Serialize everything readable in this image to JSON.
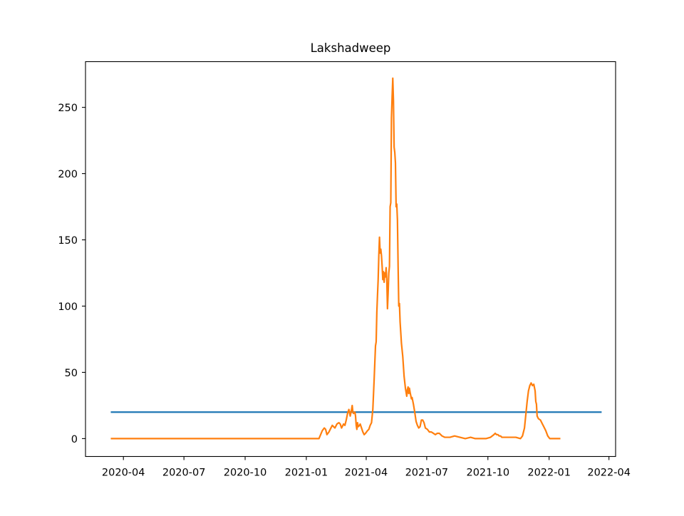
{
  "chart_data": {
    "type": "line",
    "title": "Lakshadweep",
    "xlabel": "",
    "ylabel": "",
    "x_axis_kind": "date",
    "xlim": [
      "2020-02-04",
      "2022-04-11"
    ],
    "ylim": [
      -13.5,
      284.5
    ],
    "x_ticks": [
      "2020-04",
      "2020-07",
      "2020-10",
      "2021-01",
      "2021-04",
      "2021-07",
      "2021-10",
      "2022-01",
      "2022-04"
    ],
    "y_ticks": [
      0,
      50,
      100,
      150,
      200,
      250
    ],
    "grid": false,
    "legend": null,
    "series": [
      {
        "color": "#1f77b4",
        "points": [
          [
            "2020-03-13",
            20
          ],
          [
            "2022-03-21",
            20
          ]
        ]
      },
      {
        "color": "#ff7f0e",
        "points": [
          [
            "2020-03-13",
            0
          ],
          [
            "2020-06-01",
            0
          ],
          [
            "2020-09-01",
            0
          ],
          [
            "2020-12-01",
            0
          ],
          [
            "2021-01-20",
            0
          ],
          [
            "2021-01-25",
            6
          ],
          [
            "2021-01-28",
            8
          ],
          [
            "2021-01-30",
            7
          ],
          [
            "2021-02-01",
            3
          ],
          [
            "2021-02-04",
            5
          ],
          [
            "2021-02-07",
            8
          ],
          [
            "2021-02-09",
            10
          ],
          [
            "2021-02-11",
            9
          ],
          [
            "2021-02-13",
            8
          ],
          [
            "2021-02-16",
            11
          ],
          [
            "2021-02-19",
            12
          ],
          [
            "2021-02-21",
            11
          ],
          [
            "2021-02-23",
            8
          ],
          [
            "2021-02-26",
            11
          ],
          [
            "2021-02-28",
            10
          ],
          [
            "2021-03-02",
            14
          ],
          [
            "2021-03-04",
            19
          ],
          [
            "2021-03-06",
            22
          ],
          [
            "2021-03-08",
            17
          ],
          [
            "2021-03-10",
            22
          ],
          [
            "2021-03-11",
            25
          ],
          [
            "2021-03-12",
            20
          ],
          [
            "2021-03-13",
            19
          ],
          [
            "2021-03-15",
            20
          ],
          [
            "2021-03-16",
            17
          ],
          [
            "2021-03-17",
            10
          ],
          [
            "2021-03-18",
            7
          ],
          [
            "2021-03-19",
            12
          ],
          [
            "2021-03-20",
            9
          ],
          [
            "2021-03-22",
            10
          ],
          [
            "2021-03-23",
            11
          ],
          [
            "2021-03-25",
            8
          ],
          [
            "2021-03-27",
            5
          ],
          [
            "2021-03-29",
            3
          ],
          [
            "2021-03-31",
            4
          ],
          [
            "2021-04-03",
            6
          ],
          [
            "2021-04-05",
            7
          ],
          [
            "2021-04-07",
            10
          ],
          [
            "2021-04-09",
            12
          ],
          [
            "2021-04-11",
            22
          ],
          [
            "2021-04-13",
            45
          ],
          [
            "2021-04-15",
            70
          ],
          [
            "2021-04-16",
            73
          ],
          [
            "2021-04-17",
            95
          ],
          [
            "2021-04-18",
            108
          ],
          [
            "2021-04-19",
            120
          ],
          [
            "2021-04-20",
            138
          ],
          [
            "2021-04-21",
            152
          ],
          [
            "2021-04-22",
            140
          ],
          [
            "2021-04-23",
            143
          ],
          [
            "2021-04-24",
            138
          ],
          [
            "2021-04-25",
            130
          ],
          [
            "2021-04-26",
            120
          ],
          [
            "2021-04-27",
            126
          ],
          [
            "2021-04-28",
            118
          ],
          [
            "2021-04-29",
            125
          ],
          [
            "2021-04-30",
            122
          ],
          [
            "2021-05-01",
            129
          ],
          [
            "2021-05-02",
            120
          ],
          [
            "2021-05-03",
            98
          ],
          [
            "2021-05-04",
            110
          ],
          [
            "2021-05-05",
            125
          ],
          [
            "2021-05-06",
            130
          ],
          [
            "2021-05-07",
            175
          ],
          [
            "2021-05-08",
            178
          ],
          [
            "2021-05-09",
            242
          ],
          [
            "2021-05-10",
            258
          ],
          [
            "2021-05-11",
            272
          ],
          [
            "2021-05-12",
            255
          ],
          [
            "2021-05-13",
            220
          ],
          [
            "2021-05-14",
            216
          ],
          [
            "2021-05-15",
            208
          ],
          [
            "2021-05-16",
            175
          ],
          [
            "2021-05-17",
            177
          ],
          [
            "2021-05-18",
            165
          ],
          [
            "2021-05-19",
            130
          ],
          [
            "2021-05-20",
            100
          ],
          [
            "2021-05-21",
            102
          ],
          [
            "2021-05-22",
            88
          ],
          [
            "2021-05-24",
            72
          ],
          [
            "2021-05-26",
            62
          ],
          [
            "2021-05-28",
            47
          ],
          [
            "2021-05-30",
            38
          ],
          [
            "2021-06-01",
            32
          ],
          [
            "2021-06-02",
            37
          ],
          [
            "2021-06-03",
            39
          ],
          [
            "2021-06-04",
            34
          ],
          [
            "2021-06-05",
            38
          ],
          [
            "2021-06-06",
            35
          ],
          [
            "2021-06-08",
            30
          ],
          [
            "2021-06-09",
            31
          ],
          [
            "2021-06-11",
            26
          ],
          [
            "2021-06-13",
            20
          ],
          [
            "2021-06-15",
            13
          ],
          [
            "2021-06-17",
            10
          ],
          [
            "2021-06-19",
            8
          ],
          [
            "2021-06-21",
            9
          ],
          [
            "2021-06-23",
            14
          ],
          [
            "2021-06-25",
            14
          ],
          [
            "2021-06-27",
            12
          ],
          [
            "2021-06-29",
            8
          ],
          [
            "2021-07-02",
            7
          ],
          [
            "2021-07-05",
            5
          ],
          [
            "2021-07-08",
            5
          ],
          [
            "2021-07-11",
            4
          ],
          [
            "2021-07-14",
            3
          ],
          [
            "2021-07-17",
            4
          ],
          [
            "2021-07-20",
            4
          ],
          [
            "2021-07-24",
            2
          ],
          [
            "2021-07-28",
            1
          ],
          [
            "2021-08-05",
            1
          ],
          [
            "2021-08-12",
            2
          ],
          [
            "2021-08-20",
            1
          ],
          [
            "2021-08-28",
            0
          ],
          [
            "2021-09-05",
            1
          ],
          [
            "2021-09-12",
            0
          ],
          [
            "2021-09-20",
            0
          ],
          [
            "2021-09-28",
            0
          ],
          [
            "2021-10-05",
            1
          ],
          [
            "2021-10-10",
            3
          ],
          [
            "2021-10-12",
            4
          ],
          [
            "2021-10-14",
            3
          ],
          [
            "2021-10-16",
            3
          ],
          [
            "2021-10-18",
            2
          ],
          [
            "2021-10-20",
            2
          ],
          [
            "2021-10-22",
            1
          ],
          [
            "2021-10-28",
            1
          ],
          [
            "2021-11-05",
            1
          ],
          [
            "2021-11-12",
            1
          ],
          [
            "2021-11-19",
            0
          ],
          [
            "2021-11-22",
            2
          ],
          [
            "2021-11-25",
            8
          ],
          [
            "2021-11-27",
            18
          ],
          [
            "2021-11-29",
            28
          ],
          [
            "2021-12-01",
            36
          ],
          [
            "2021-12-03",
            40
          ],
          [
            "2021-12-05",
            42
          ],
          [
            "2021-12-07",
            40
          ],
          [
            "2021-12-09",
            41
          ],
          [
            "2021-12-11",
            36
          ],
          [
            "2021-12-12",
            28
          ],
          [
            "2021-12-13",
            26
          ],
          [
            "2021-12-14",
            17
          ],
          [
            "2021-12-16",
            15
          ],
          [
            "2021-12-19",
            14
          ],
          [
            "2021-12-22",
            11
          ],
          [
            "2021-12-24",
            9
          ],
          [
            "2021-12-27",
            6
          ],
          [
            "2021-12-30",
            2
          ],
          [
            "2022-01-02",
            0
          ],
          [
            "2022-01-10",
            0
          ],
          [
            "2022-01-18",
            0
          ]
        ]
      }
    ]
  }
}
